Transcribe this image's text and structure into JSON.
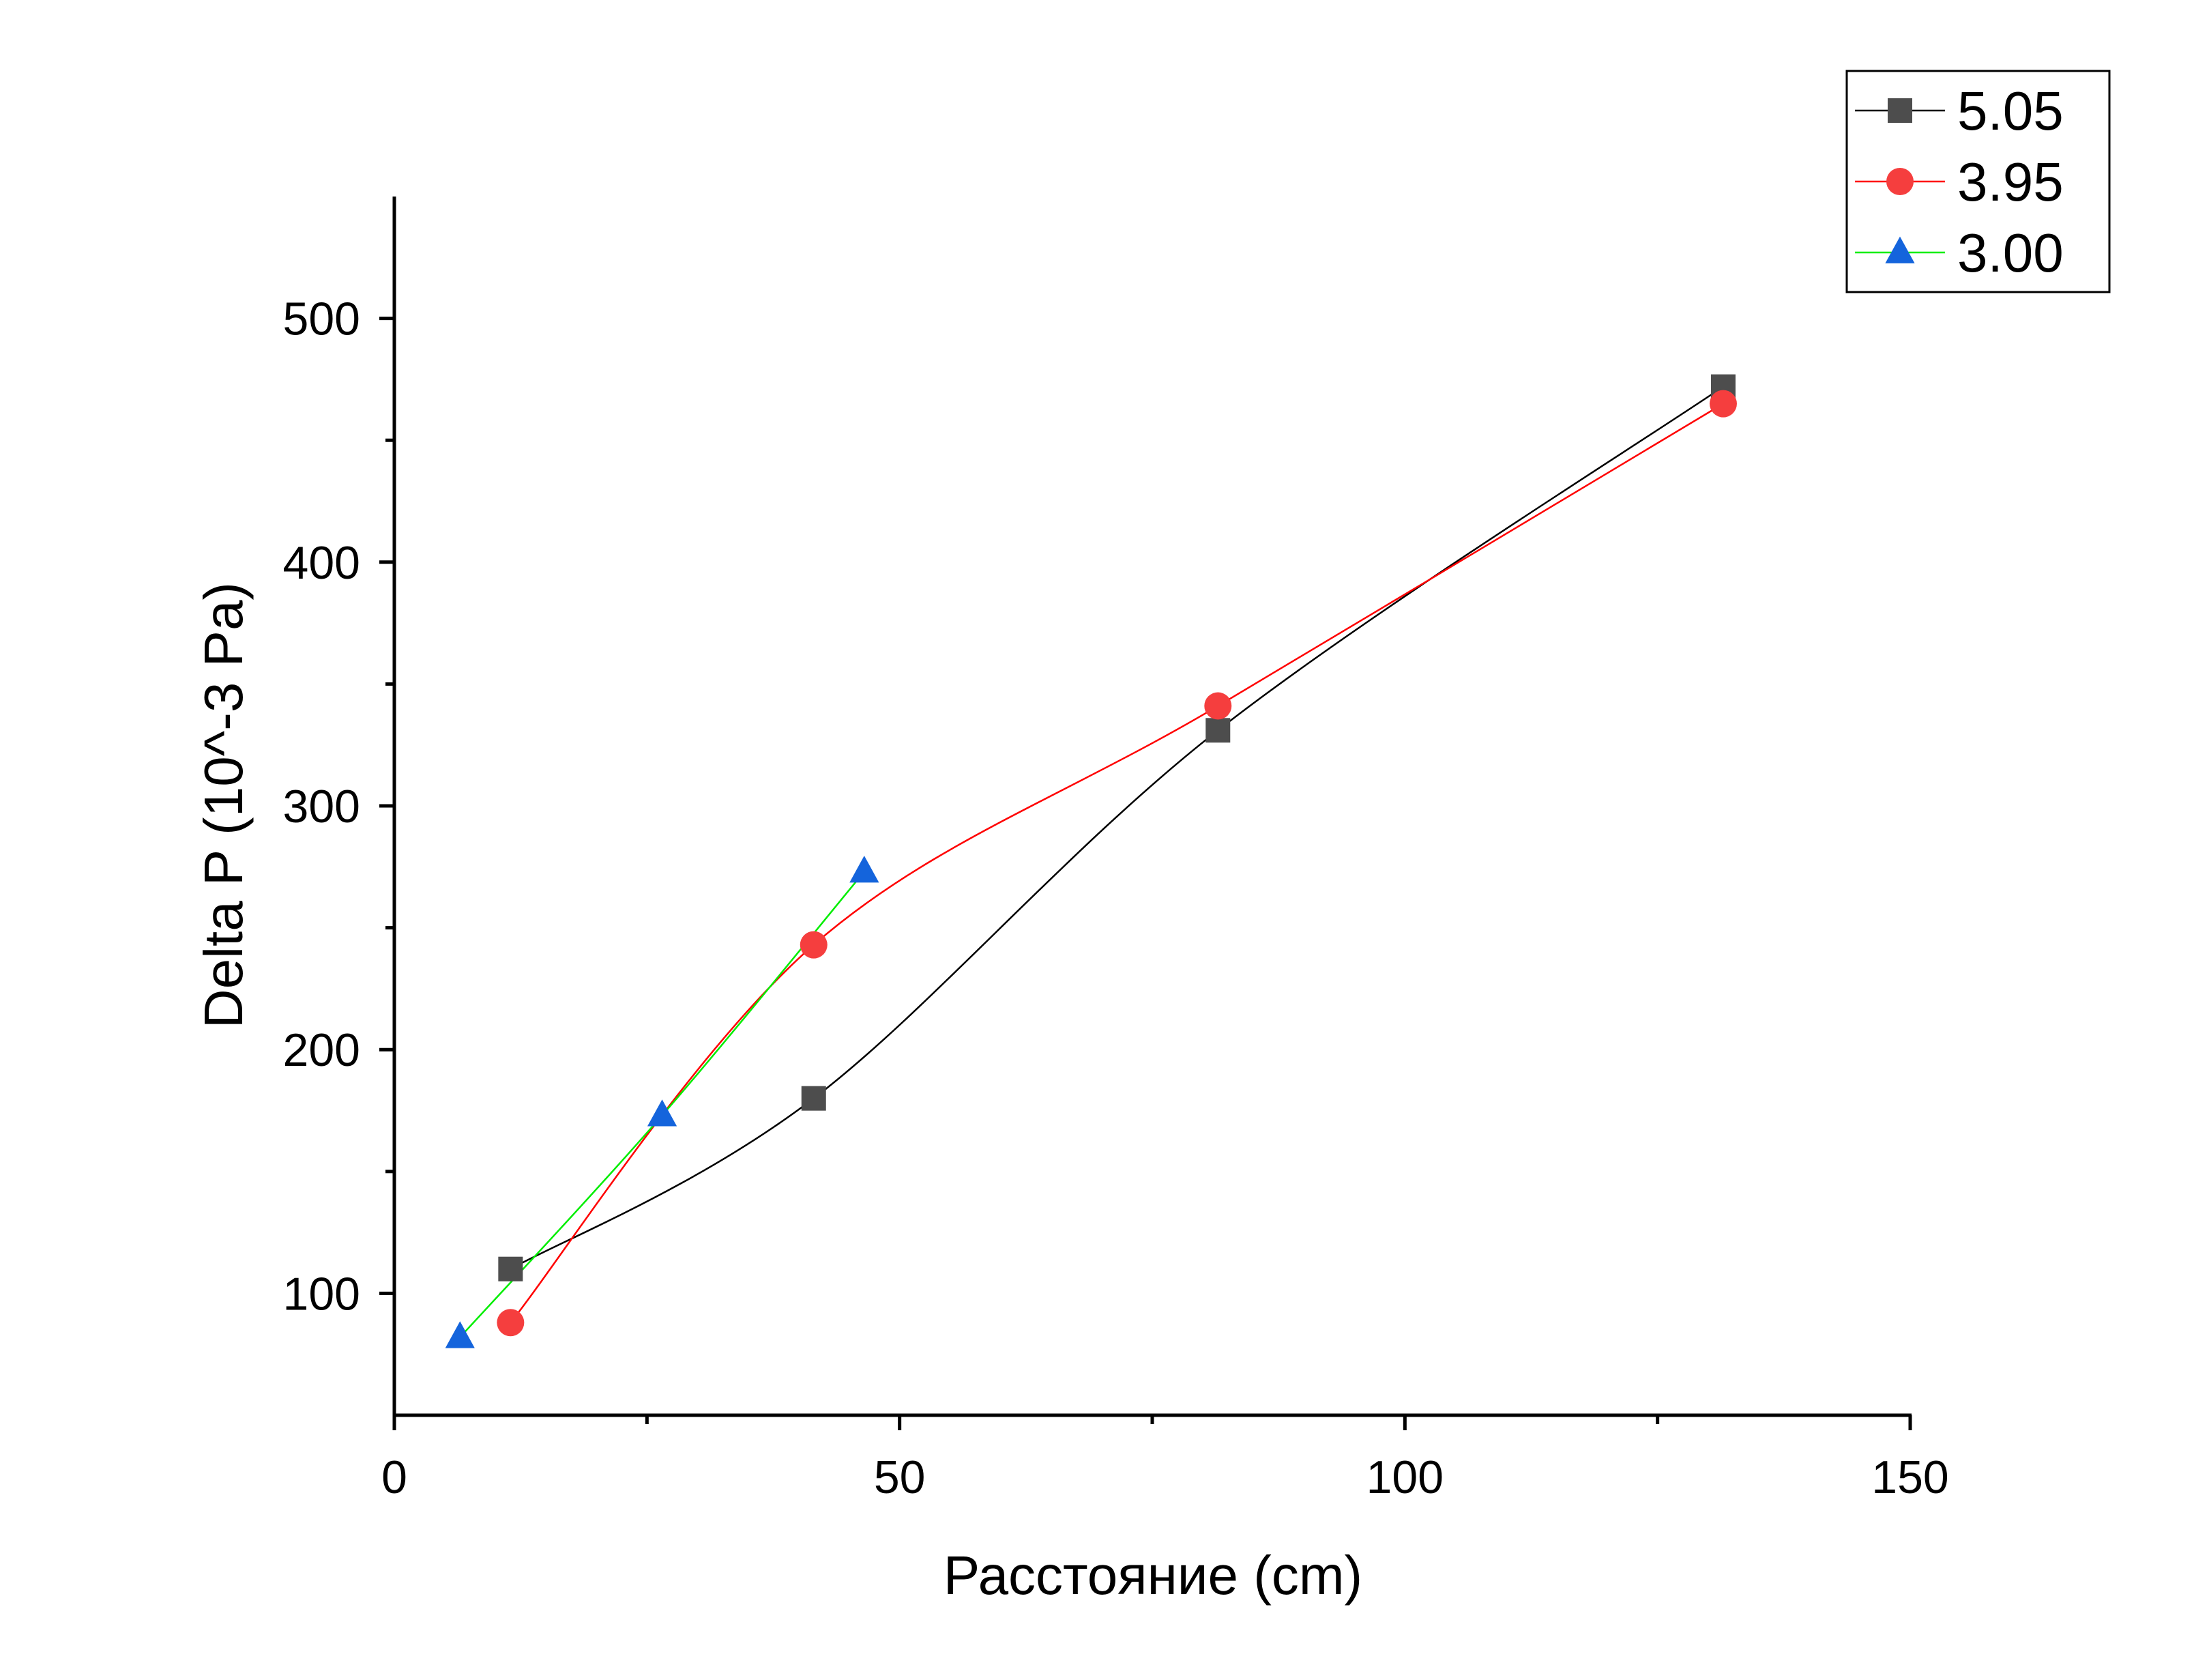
{
  "chart_data": {
    "type": "line",
    "xlabel": "Расстояние (cm)",
    "ylabel": "Delta P (10^-3 Pa)",
    "xlim": [
      0,
      150
    ],
    "ylim": [
      50,
      550
    ],
    "xticks": [
      0,
      50,
      100,
      150
    ],
    "xtick_labels": [
      "0",
      "50",
      "100",
      "150"
    ],
    "xminor": [
      25,
      75,
      125
    ],
    "yticks": [
      100,
      200,
      300,
      400,
      500
    ],
    "ytick_labels": [
      "100",
      "200",
      "300",
      "400",
      "500"
    ],
    "yminor": [
      150,
      250,
      350,
      450
    ],
    "grid": false,
    "legend_position": "top-right",
    "series": [
      {
        "name": "5.05",
        "marker": "square",
        "color": "#4d4d4d",
        "line_color": "#000000",
        "x": [
          11.5,
          41.5,
          81.5,
          131.5
        ],
        "y": [
          110,
          180,
          331,
          472
        ]
      },
      {
        "name": "3.95",
        "marker": "circle",
        "color": "#f53e3e",
        "line_color": "#ff0000",
        "x": [
          11.5,
          41.5,
          81.5,
          131.5
        ],
        "y": [
          88,
          243,
          341,
          465
        ]
      },
      {
        "name": "3.00",
        "marker": "triangle",
        "color": "#1464dc",
        "line_color": "#00ee00",
        "x": [
          6.5,
          26.5,
          46.5
        ],
        "y": [
          82,
          173,
          273
        ]
      }
    ]
  }
}
